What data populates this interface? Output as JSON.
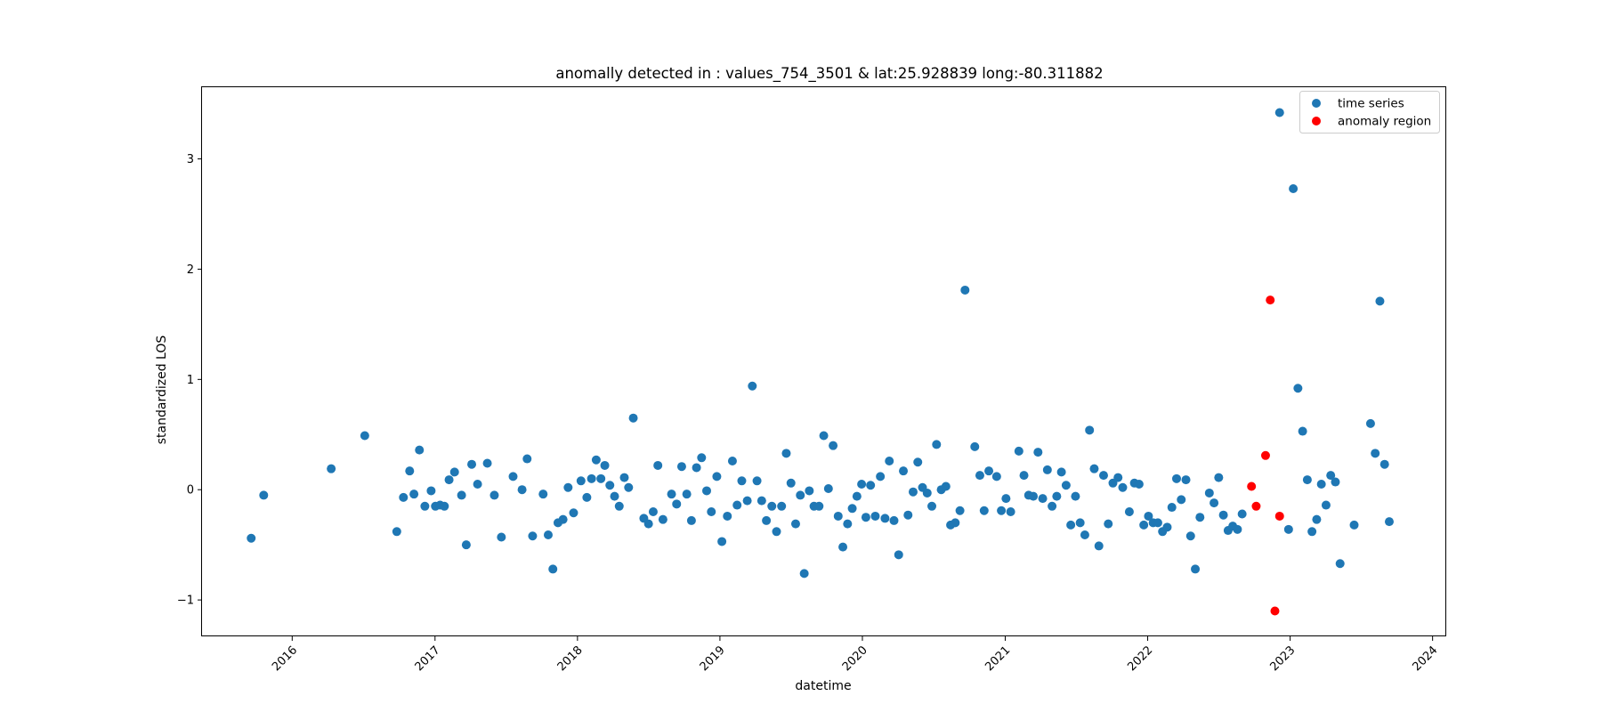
{
  "chart_data": {
    "type": "scatter",
    "title": "anomally detected in : values_754_3501 & lat:25.928839 long:-80.311882",
    "xlabel": "datetime",
    "ylabel": "standardized LOS",
    "x_type": "date",
    "xlim": [
      "2015-05-15",
      "2024-02-05"
    ],
    "ylim": [
      -1.33,
      3.65
    ],
    "x_ticks": [
      "2016-01-01",
      "2017-01-01",
      "2018-01-01",
      "2019-01-01",
      "2020-01-01",
      "2021-01-01",
      "2022-01-01",
      "2023-01-01",
      "2024-01-01"
    ],
    "x_tick_labels": [
      "2016",
      "2017",
      "2018",
      "2019",
      "2020",
      "2021",
      "2022",
      "2023",
      "2024"
    ],
    "y_ticks": [
      -1,
      0,
      1,
      2,
      3
    ],
    "y_tick_labels": [
      "−1",
      "0",
      "1",
      "2",
      "3"
    ],
    "grid": false,
    "legend_position": "upper right",
    "series": [
      {
        "name": "time series",
        "color": "#1f77b4",
        "points": [
          [
            "2015-09-18",
            -0.44
          ],
          [
            "2015-10-20",
            -0.05
          ],
          [
            "2016-04-10",
            0.19
          ],
          [
            "2016-07-05",
            0.49
          ],
          [
            "2016-09-25",
            -0.38
          ],
          [
            "2016-10-12",
            -0.07
          ],
          [
            "2016-10-28",
            0.17
          ],
          [
            "2016-11-08",
            -0.04
          ],
          [
            "2016-11-22",
            0.36
          ],
          [
            "2016-12-06",
            -0.15
          ],
          [
            "2016-12-22",
            -0.01
          ],
          [
            "2017-01-02",
            -0.15
          ],
          [
            "2017-01-14",
            -0.14
          ],
          [
            "2017-01-25",
            -0.15
          ],
          [
            "2017-02-06",
            0.09
          ],
          [
            "2017-02-20",
            0.16
          ],
          [
            "2017-03-10",
            -0.05
          ],
          [
            "2017-03-22",
            -0.5
          ],
          [
            "2017-04-05",
            0.23
          ],
          [
            "2017-04-20",
            0.05
          ],
          [
            "2017-05-15",
            0.24
          ],
          [
            "2017-06-02",
            -0.05
          ],
          [
            "2017-06-20",
            -0.43
          ],
          [
            "2017-07-20",
            0.12
          ],
          [
            "2017-08-12",
            0.0
          ],
          [
            "2017-08-25",
            0.28
          ],
          [
            "2017-09-08",
            -0.42
          ],
          [
            "2017-10-05",
            -0.04
          ],
          [
            "2017-10-18",
            -0.41
          ],
          [
            "2017-10-30",
            -0.72
          ],
          [
            "2017-11-12",
            -0.3
          ],
          [
            "2017-11-25",
            -0.27
          ],
          [
            "2017-12-08",
            0.02
          ],
          [
            "2017-12-22",
            -0.21
          ],
          [
            "2018-01-10",
            0.08
          ],
          [
            "2018-01-25",
            -0.07
          ],
          [
            "2018-02-06",
            0.1
          ],
          [
            "2018-02-18",
            0.27
          ],
          [
            "2018-03-02",
            0.1
          ],
          [
            "2018-03-12",
            0.22
          ],
          [
            "2018-03-25",
            0.04
          ],
          [
            "2018-04-06",
            -0.06
          ],
          [
            "2018-04-18",
            -0.15
          ],
          [
            "2018-05-01",
            0.11
          ],
          [
            "2018-05-12",
            0.02
          ],
          [
            "2018-05-24",
            0.65
          ],
          [
            "2018-06-20",
            -0.26
          ],
          [
            "2018-07-02",
            -0.31
          ],
          [
            "2018-07-14",
            -0.2
          ],
          [
            "2018-07-26",
            0.22
          ],
          [
            "2018-08-08",
            -0.27
          ],
          [
            "2018-08-30",
            -0.04
          ],
          [
            "2018-09-12",
            -0.13
          ],
          [
            "2018-09-25",
            0.21
          ],
          [
            "2018-10-08",
            -0.04
          ],
          [
            "2018-10-20",
            -0.28
          ],
          [
            "2018-11-02",
            0.2
          ],
          [
            "2018-11-15",
            0.29
          ],
          [
            "2018-11-28",
            -0.01
          ],
          [
            "2018-12-10",
            -0.2
          ],
          [
            "2018-12-24",
            0.12
          ],
          [
            "2019-01-06",
            -0.47
          ],
          [
            "2019-01-20",
            -0.24
          ],
          [
            "2019-02-02",
            0.26
          ],
          [
            "2019-02-14",
            -0.14
          ],
          [
            "2019-02-26",
            0.08
          ],
          [
            "2019-03-12",
            -0.1
          ],
          [
            "2019-03-25",
            0.94
          ],
          [
            "2019-04-06",
            0.08
          ],
          [
            "2019-04-18",
            -0.1
          ],
          [
            "2019-04-30",
            -0.28
          ],
          [
            "2019-05-14",
            -0.15
          ],
          [
            "2019-05-26",
            -0.38
          ],
          [
            "2019-06-08",
            -0.15
          ],
          [
            "2019-06-20",
            0.33
          ],
          [
            "2019-07-02",
            0.06
          ],
          [
            "2019-07-14",
            -0.31
          ],
          [
            "2019-07-26",
            -0.05
          ],
          [
            "2019-08-05",
            -0.76
          ],
          [
            "2019-08-18",
            -0.01
          ],
          [
            "2019-08-30",
            -0.15
          ],
          [
            "2019-09-12",
            -0.15
          ],
          [
            "2019-09-24",
            0.49
          ],
          [
            "2019-10-06",
            0.01
          ],
          [
            "2019-10-18",
            0.4
          ],
          [
            "2019-10-31",
            -0.24
          ],
          [
            "2019-11-12",
            -0.52
          ],
          [
            "2019-11-24",
            -0.31
          ],
          [
            "2019-12-06",
            -0.17
          ],
          [
            "2019-12-18",
            -0.06
          ],
          [
            "2019-12-30",
            0.05
          ],
          [
            "2020-01-10",
            -0.25
          ],
          [
            "2020-01-22",
            0.04
          ],
          [
            "2020-02-03",
            -0.24
          ],
          [
            "2020-02-16",
            0.12
          ],
          [
            "2020-02-28",
            -0.26
          ],
          [
            "2020-03-10",
            0.26
          ],
          [
            "2020-03-22",
            -0.28
          ],
          [
            "2020-04-03",
            -0.59
          ],
          [
            "2020-04-15",
            0.17
          ],
          [
            "2020-04-27",
            -0.23
          ],
          [
            "2020-05-10",
            -0.02
          ],
          [
            "2020-05-22",
            0.25
          ],
          [
            "2020-06-03",
            0.02
          ],
          [
            "2020-06-15",
            -0.03
          ],
          [
            "2020-06-27",
            -0.15
          ],
          [
            "2020-07-09",
            0.41
          ],
          [
            "2020-07-21",
            0.0
          ],
          [
            "2020-08-02",
            0.03
          ],
          [
            "2020-08-14",
            -0.32
          ],
          [
            "2020-08-26",
            -0.3
          ],
          [
            "2020-09-07",
            -0.19
          ],
          [
            "2020-09-20",
            1.81
          ],
          [
            "2020-10-15",
            0.39
          ],
          [
            "2020-10-28",
            0.13
          ],
          [
            "2020-11-08",
            -0.19
          ],
          [
            "2020-11-20",
            0.17
          ],
          [
            "2020-12-10",
            0.12
          ],
          [
            "2020-12-22",
            -0.19
          ],
          [
            "2021-01-03",
            -0.08
          ],
          [
            "2021-01-15",
            -0.2
          ],
          [
            "2021-02-05",
            0.35
          ],
          [
            "2021-02-18",
            0.13
          ],
          [
            "2021-03-02",
            -0.05
          ],
          [
            "2021-03-14",
            -0.06
          ],
          [
            "2021-03-26",
            0.34
          ],
          [
            "2021-04-07",
            -0.08
          ],
          [
            "2021-04-19",
            0.18
          ],
          [
            "2021-05-01",
            -0.15
          ],
          [
            "2021-05-13",
            -0.06
          ],
          [
            "2021-05-25",
            0.16
          ],
          [
            "2021-06-06",
            0.04
          ],
          [
            "2021-06-18",
            -0.32
          ],
          [
            "2021-06-30",
            -0.06
          ],
          [
            "2021-07-12",
            -0.3
          ],
          [
            "2021-07-24",
            -0.41
          ],
          [
            "2021-08-05",
            0.54
          ],
          [
            "2021-08-17",
            0.19
          ],
          [
            "2021-08-29",
            -0.51
          ],
          [
            "2021-09-10",
            0.13
          ],
          [
            "2021-09-22",
            -0.31
          ],
          [
            "2021-10-04",
            0.06
          ],
          [
            "2021-10-17",
            0.11
          ],
          [
            "2021-10-29",
            0.02
          ],
          [
            "2021-11-15",
            -0.2
          ],
          [
            "2021-11-28",
            0.06
          ],
          [
            "2021-12-10",
            0.05
          ],
          [
            "2021-12-22",
            -0.32
          ],
          [
            "2022-01-03",
            -0.24
          ],
          [
            "2022-01-15",
            -0.3
          ],
          [
            "2022-01-27",
            -0.3
          ],
          [
            "2022-02-08",
            -0.38
          ],
          [
            "2022-02-20",
            -0.34
          ],
          [
            "2022-03-04",
            -0.16
          ],
          [
            "2022-03-16",
            0.1
          ],
          [
            "2022-03-28",
            -0.09
          ],
          [
            "2022-04-09",
            0.09
          ],
          [
            "2022-04-21",
            -0.42
          ],
          [
            "2022-05-03",
            -0.72
          ],
          [
            "2022-05-15",
            -0.25
          ],
          [
            "2022-06-08",
            -0.03
          ],
          [
            "2022-06-20",
            -0.12
          ],
          [
            "2022-07-02",
            0.11
          ],
          [
            "2022-07-14",
            -0.23
          ],
          [
            "2022-07-26",
            -0.37
          ],
          [
            "2022-08-07",
            -0.33
          ],
          [
            "2022-08-19",
            -0.36
          ],
          [
            "2022-08-31",
            -0.22
          ],
          [
            "2022-12-05",
            3.42
          ],
          [
            "2022-12-28",
            -0.36
          ],
          [
            "2023-01-09",
            2.73
          ],
          [
            "2023-01-21",
            0.92
          ],
          [
            "2023-02-02",
            0.53
          ],
          [
            "2023-02-14",
            0.09
          ],
          [
            "2023-02-26",
            -0.38
          ],
          [
            "2023-03-10",
            -0.27
          ],
          [
            "2023-03-22",
            0.05
          ],
          [
            "2023-04-03",
            -0.14
          ],
          [
            "2023-04-15",
            0.13
          ],
          [
            "2023-04-27",
            0.07
          ],
          [
            "2023-05-09",
            -0.67
          ],
          [
            "2023-06-14",
            -0.32
          ],
          [
            "2023-07-26",
            0.6
          ],
          [
            "2023-08-07",
            0.33
          ],
          [
            "2023-08-19",
            1.71
          ],
          [
            "2023-08-31",
            0.23
          ],
          [
            "2023-09-12",
            -0.29
          ]
        ]
      },
      {
        "name": "anomaly region",
        "color": "#ff0000",
        "points": [
          [
            "2022-09-24",
            0.03
          ],
          [
            "2022-10-06",
            -0.15
          ],
          [
            "2022-10-30",
            0.31
          ],
          [
            "2022-11-11",
            1.72
          ],
          [
            "2022-11-23",
            -1.1
          ],
          [
            "2022-12-05",
            -0.24
          ]
        ]
      }
    ]
  }
}
